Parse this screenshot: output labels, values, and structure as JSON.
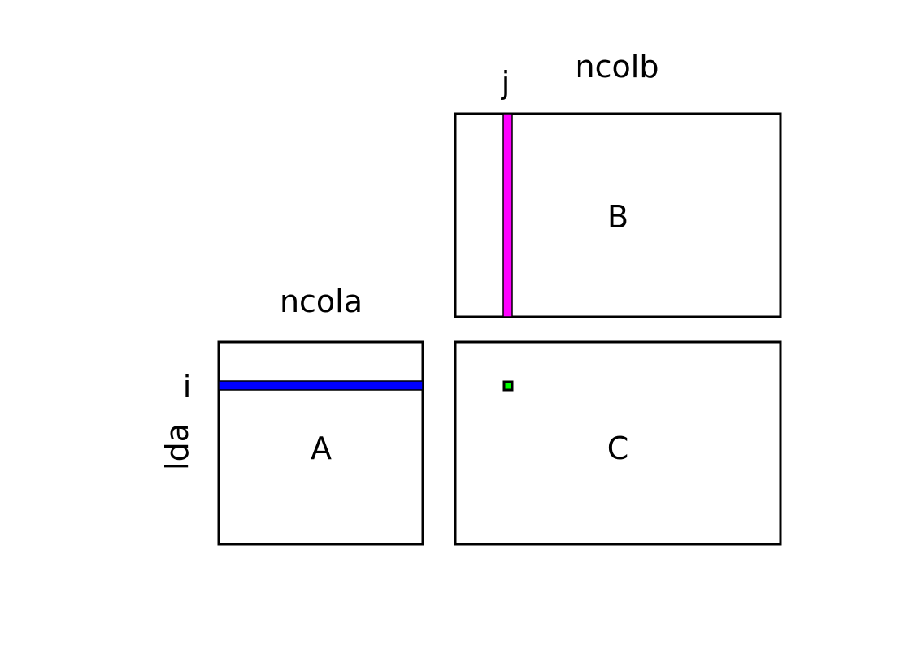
{
  "labels": {
    "ncolb": "ncolb",
    "j": "j",
    "ncola": "ncola",
    "i": "i",
    "lda": "lda",
    "matrix_a": "A",
    "matrix_b": "B",
    "matrix_c": "C"
  },
  "colors": {
    "row_highlight": "#0000ff",
    "column_highlight": "#ff00ff",
    "element_highlight": "#00ff00",
    "outline": "#000000"
  }
}
